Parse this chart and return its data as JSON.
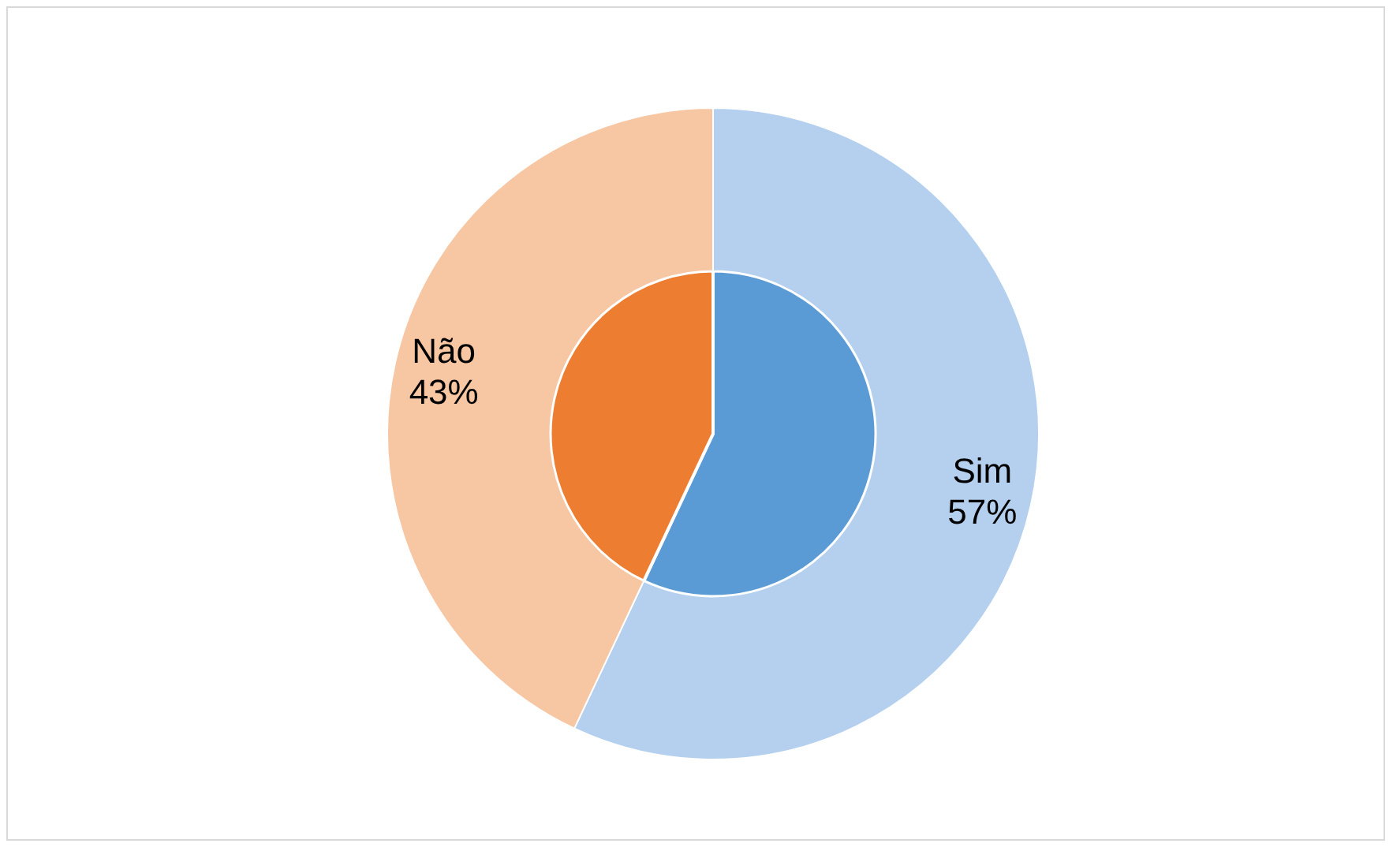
{
  "chart_data": {
    "type": "donut",
    "categories": [
      "Sim",
      "Não"
    ],
    "series": [
      {
        "values": [
          57,
          43
        ],
        "colors": [
          "#b4d0ee",
          "#f7c6a3"
        ],
        "value_labels": [
          "57%",
          "43%"
        ]
      },
      {
        "type": "pie",
        "values": [
          57,
          43
        ],
        "colors": [
          "#5b9bd5",
          "#ed7d31"
        ]
      }
    ],
    "legend": false
  }
}
